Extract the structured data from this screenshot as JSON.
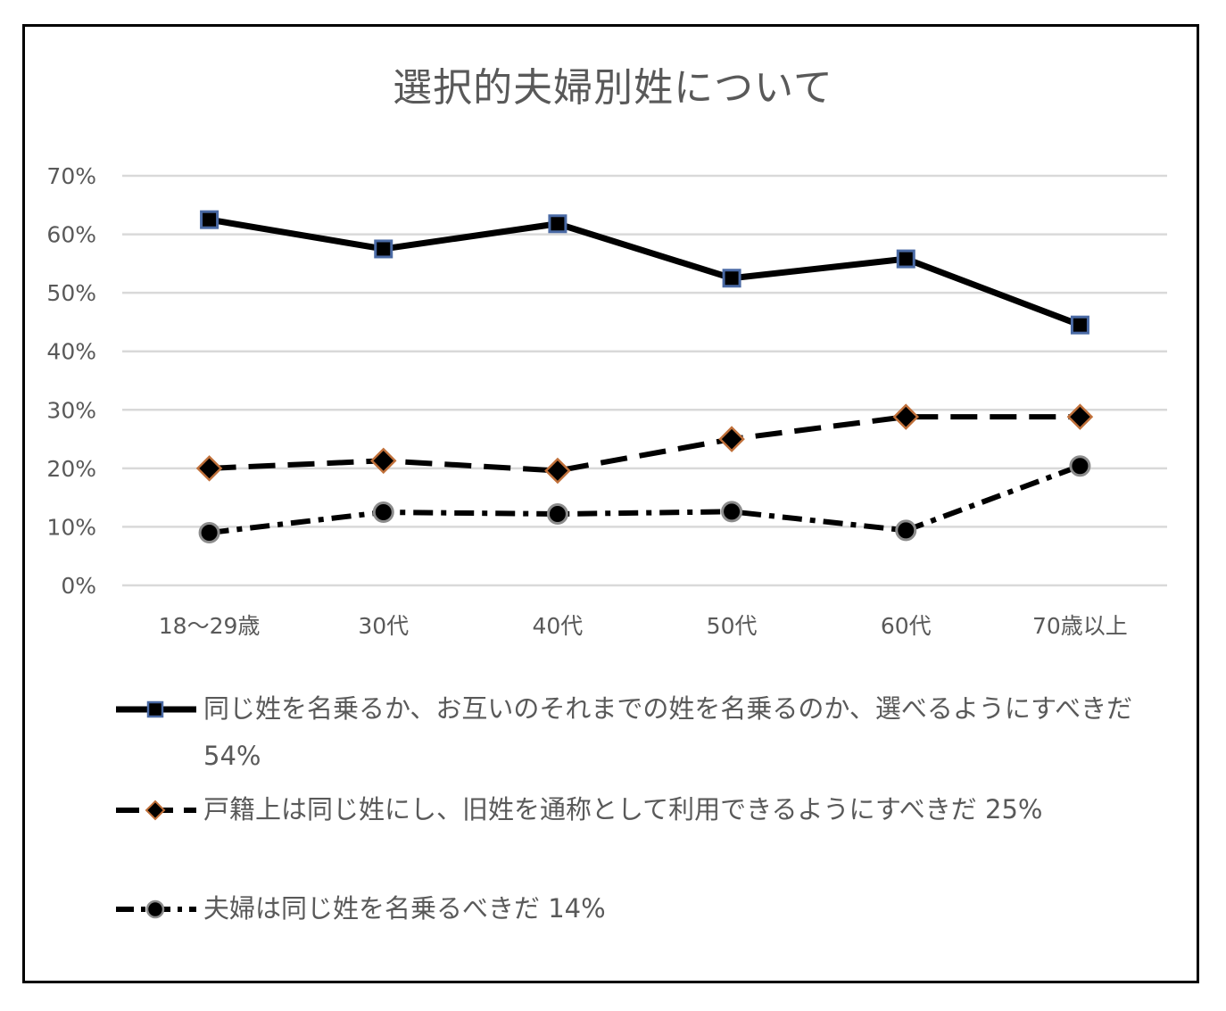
{
  "title": "選択的夫婦別姓について",
  "chart_data": {
    "type": "line",
    "title": "選択的夫婦別姓について",
    "categories": [
      "18〜29歳",
      "30代",
      "40代",
      "50代",
      "60代",
      "70歳以上"
    ],
    "ylim": [
      0,
      70
    ],
    "yticks": [
      "0%",
      "10%",
      "20%",
      "30%",
      "40%",
      "50%",
      "60%",
      "70%"
    ],
    "grid": true,
    "legend_position": "bottom",
    "series": [
      {
        "name": "同じ姓を名乗るか、お互いのそれまでの姓を名乗るのか、選べるようにすべきだ 54%",
        "values": [
          62.5,
          57.5,
          61.8,
          52.5,
          55.8,
          44.5
        ],
        "style": "solid",
        "marker": "square",
        "marker_fill": "#000000",
        "marker_edge": "#4a6aa5"
      },
      {
        "name": "戸籍上は同じ姓にし、旧姓を通称として利用できるようにすべきだ 25%",
        "values": [
          20.0,
          21.3,
          19.6,
          25.0,
          28.8,
          28.8
        ],
        "style": "dashed",
        "marker": "diamond",
        "marker_fill": "#000000",
        "marker_edge": "#c0703a"
      },
      {
        "name": "夫婦は同じ姓を名乗るべきだ 14%",
        "values": [
          9.0,
          12.5,
          12.2,
          12.6,
          9.4,
          20.4
        ],
        "style": "dotted-dash",
        "marker": "circle",
        "marker_fill": "#000000",
        "marker_edge": "#8c8c8c"
      }
    ]
  }
}
